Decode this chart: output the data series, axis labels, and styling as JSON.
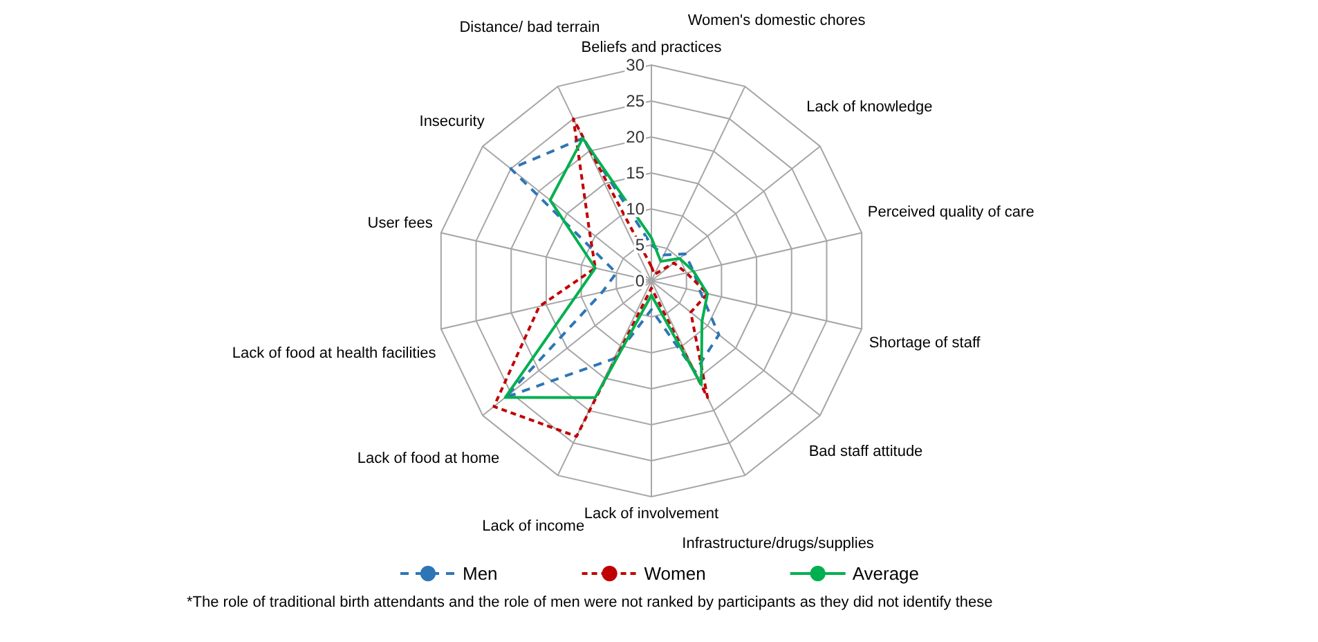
{
  "chart_data": {
    "type": "radar",
    "categories": [
      "Beliefs and practices",
      "Women's domestic chores",
      "Lack of knowledge",
      "Perceived quality of care",
      "Shortage of staff",
      "Bad staff attitude",
      "Infrastructure/drugs/supplies",
      "Lack of involvement",
      "Lack of income",
      "Lack of food at home",
      "Lack of food at health facilities",
      "User fees",
      "Insecurity",
      "Distance/ bad terrain"
    ],
    "series": [
      {
        "name": "Men",
        "color": "#2e75b6",
        "line_style": "dashed",
        "values": [
          5,
          4,
          6,
          6,
          7,
          12,
          14,
          4,
          12,
          26,
          7,
          5,
          25,
          22
        ]
      },
      {
        "name": "Women",
        "color": "#c00000",
        "line_style": "dotted",
        "values": [
          2,
          1,
          4,
          5,
          8,
          7,
          18,
          1,
          24,
          28,
          16,
          8,
          11,
          25
        ]
      },
      {
        "name": "Average",
        "color": "#00b050",
        "line_style": "solid",
        "values": [
          6,
          3,
          5,
          6,
          8,
          9,
          16,
          2,
          18,
          26,
          11,
          8,
          18,
          22
        ]
      }
    ],
    "ylim": [
      0,
      30
    ],
    "yticks": [
      0,
      5,
      10,
      15,
      20,
      25,
      30
    ],
    "marker": "none",
    "legend": "bottom",
    "annotations": [
      "*The role of traditional birth attendants and the role of men were not ranked by participants as they did not identify these"
    ]
  }
}
